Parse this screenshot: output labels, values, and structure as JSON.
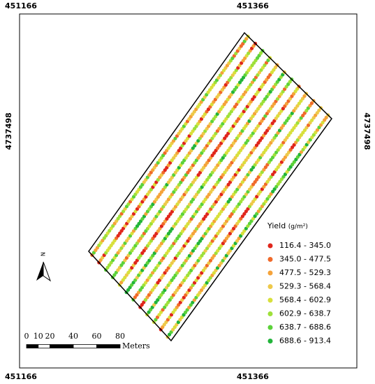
{
  "map": {
    "top_labels": [
      451166,
      451366
    ],
    "bottom_labels": [
      451166,
      451366
    ],
    "left_label": 4737498,
    "right_label": 4737498,
    "north": "N",
    "scale": {
      "ticks": [
        0,
        10,
        20,
        40,
        60,
        80
      ],
      "unit": "Meters"
    },
    "legend": {
      "title": "Yield",
      "unit": "(g/m²)",
      "classes": [
        {
          "label": "116.4 - 345.0",
          "color": "#e0261c"
        },
        {
          "label": "345.0 - 477.5",
          "color": "#f06a2a"
        },
        {
          "label": "477.5 - 529.3",
          "color": "#f5a33a"
        },
        {
          "label": "529.3 - 568.4",
          "color": "#eec94a"
        },
        {
          "label": "568.4 - 602.9",
          "color": "#d8e03c"
        },
        {
          "label": "602.9 - 638.7",
          "color": "#9ee03a"
        },
        {
          "label": "638.7 - 688.6",
          "color": "#5cd23a"
        },
        {
          "label": "688.6 - 913.4",
          "color": "#22b43a"
        }
      ]
    }
  }
}
